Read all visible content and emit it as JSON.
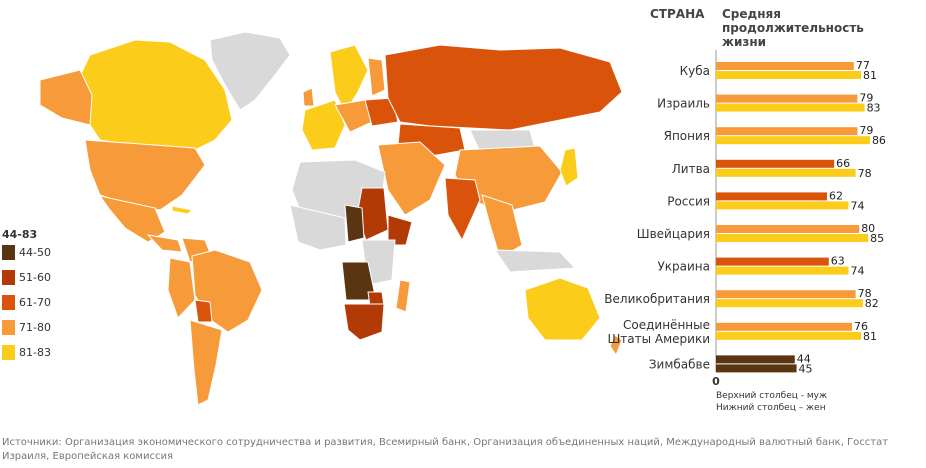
{
  "legend": {
    "title": "44-83",
    "items": [
      {
        "label": "44-50",
        "color": "#5a3512"
      },
      {
        "label": "51-60",
        "color": "#b23a07"
      },
      {
        "label": "61-70",
        "color": "#d9540a"
      },
      {
        "label": "71-80",
        "color": "#f69a3a"
      },
      {
        "label": "81-83",
        "color": "#fccc1a"
      }
    ]
  },
  "map": {
    "no_data_color": "#d9d9d9"
  },
  "header": {
    "country": "СТРАНА",
    "metric": "Средняя продолжительность жизни"
  },
  "notes": {
    "top": "Верхний столбец - муж",
    "bottom": "Нижний столбец – жен"
  },
  "source": "Источники: Организация экономического сотрудничества и развития, Всемирный банк, Организация объединенных наций, Международный валютный банк, Госстат Израиля, Европейская комиссия",
  "chart_data": {
    "type": "bar",
    "orientation": "horizontal",
    "xmin_label": "0",
    "categories": [
      "Куба",
      "Израиль",
      "Япония",
      "Литва",
      "Россия",
      "Швейцария",
      "Украина",
      "Великобритания",
      "Соединённые Штаты Америки",
      "Зимбабве"
    ],
    "series": [
      {
        "name": "Верхний столбец - муж",
        "values": [
          77,
          79,
          79,
          66,
          62,
          80,
          63,
          78,
          76,
          44
        ]
      },
      {
        "name": "Нижний столбец – жен",
        "values": [
          81,
          83,
          86,
          78,
          74,
          85,
          74,
          82,
          81,
          45
        ]
      }
    ]
  }
}
